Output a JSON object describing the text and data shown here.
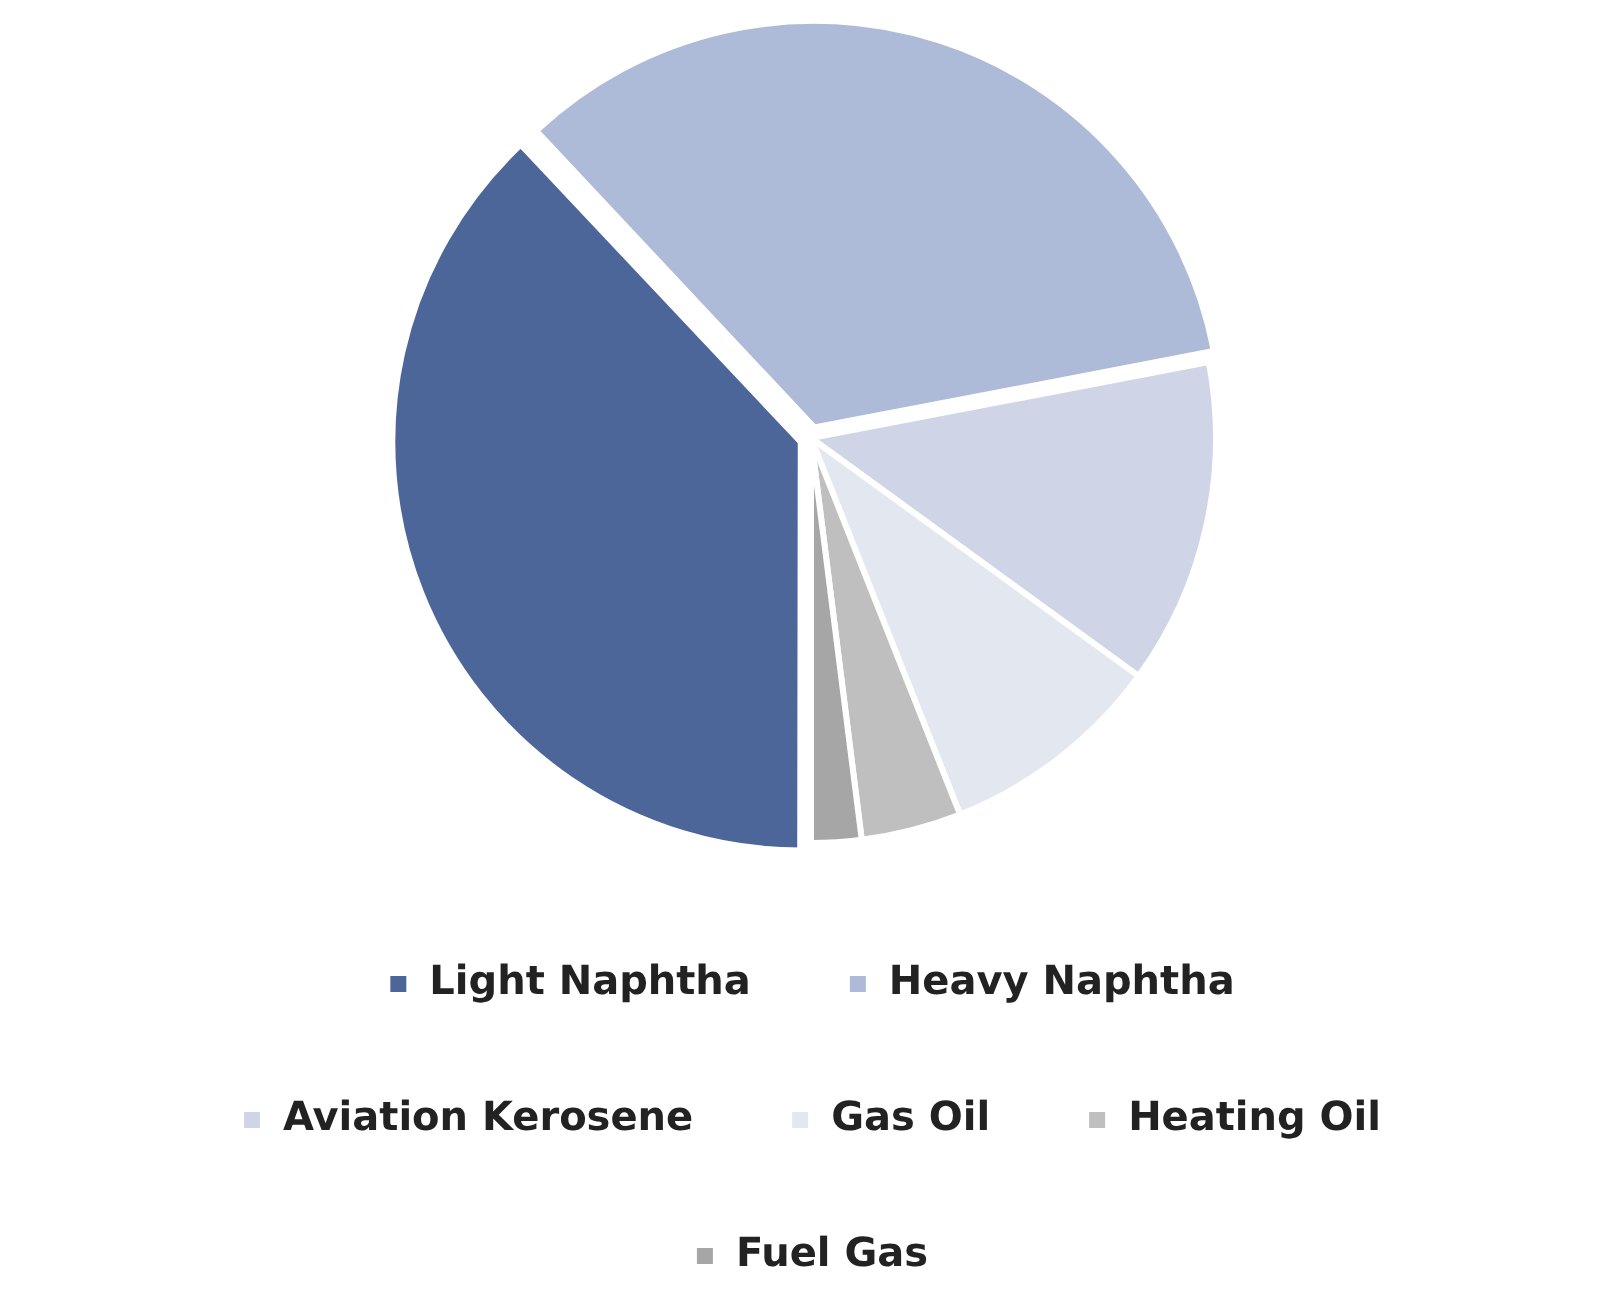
{
  "chart_data": {
    "type": "pie",
    "categories": [
      "Light Naphtha",
      "Heavy Naphtha",
      "Aviation Kerosene",
      "Gas Oil",
      "Heating Oil",
      "Fuel Gas"
    ],
    "values": [
      38,
      34,
      13,
      9,
      4,
      2
    ],
    "colors": [
      "#4d6699",
      "#adbbd8",
      "#cfd5e6",
      "#e3e7f0",
      "#bfbfbf",
      "#a6a6a6"
    ],
    "legend": "bottom"
  }
}
